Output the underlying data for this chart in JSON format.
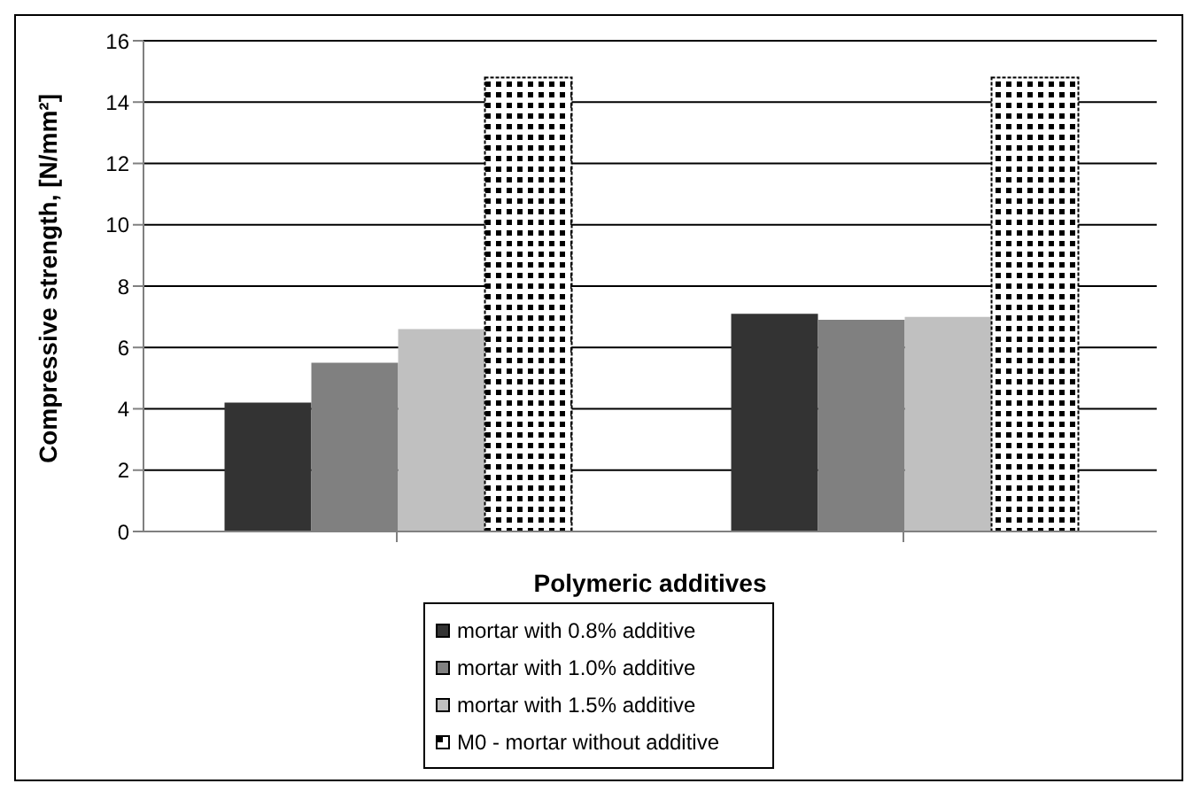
{
  "chart_data": {
    "type": "bar",
    "xlabel": "Polymeric additives",
    "ylabel": "Compressive strength, [N/mm²]",
    "categories": [
      null,
      null
    ],
    "series": [
      {
        "name": "mortar with 0.8% additive",
        "color": "#333333",
        "values": [
          4.2,
          7.1
        ]
      },
      {
        "name": "mortar with 1.0% additive",
        "color": "#808080",
        "values": [
          5.5,
          6.9
        ]
      },
      {
        "name": "mortar with 1.5% additive",
        "color": "#c0c0c0",
        "values": [
          6.6,
          7.0
        ]
      },
      {
        "name": "M0 - mortar without additive",
        "color": "#000000",
        "values": [
          14.8,
          14.8
        ]
      }
    ],
    "ylim": [
      0,
      16
    ],
    "yticks": [
      0,
      2,
      4,
      6,
      8,
      10,
      12,
      14,
      16
    ],
    "grid": "y",
    "legend": "bottom"
  }
}
